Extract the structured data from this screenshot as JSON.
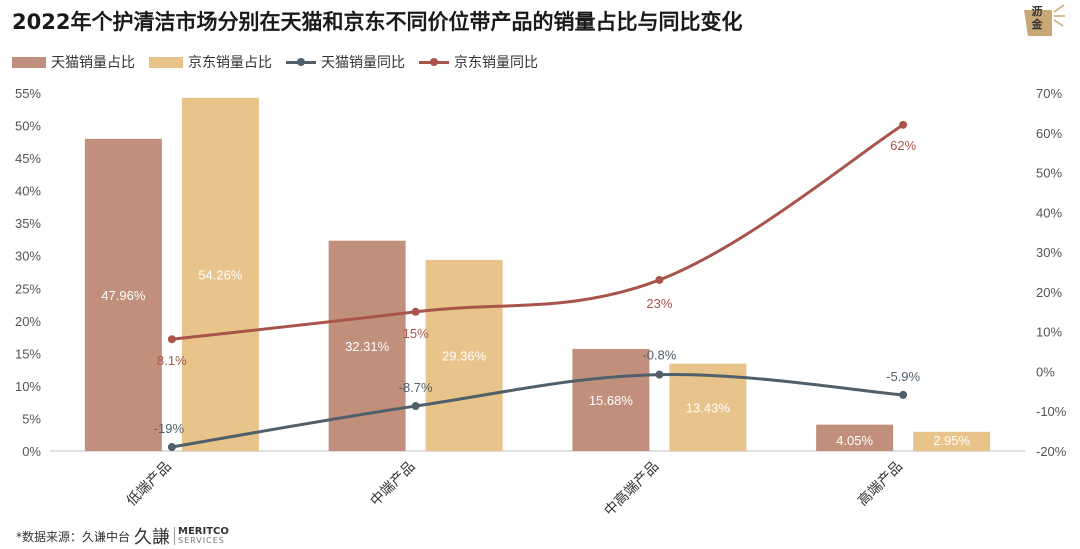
{
  "title": "2022年个护清洁市场分别在天猫和京东不同价位带产品的销量占比与同比变化",
  "logo": {
    "text": "沥金",
    "icon": "logo-star-icon"
  },
  "legend": [
    {
      "label": "天猫销量占比",
      "kind": "bar",
      "color": "#c0907c"
    },
    {
      "label": "京东销量占比",
      "kind": "bar",
      "color": "#e8c48a"
    },
    {
      "label": "天猫销量同比",
      "kind": "line",
      "color": "#4f5f6b"
    },
    {
      "label": "京东销量同比",
      "kind": "line",
      "color": "#a8544a"
    }
  ],
  "footer": {
    "source": "*数据来源：久谦中台",
    "brand_cn": "久謙",
    "brand_en": "MERITCO",
    "brand_en_sub": "SERVICES"
  },
  "chart_data": {
    "type": "bar",
    "categories": [
      "低端产品",
      "中端产品",
      "中高端产品",
      "高端产品"
    ],
    "series": [
      {
        "name": "天猫销量占比",
        "type": "bar",
        "axis": "left",
        "color": "#c0907c",
        "values": [
          47.96,
          32.31,
          15.68,
          4.05
        ],
        "labels": [
          "47.96%",
          "32.31%",
          "15.68%",
          "4.05%"
        ]
      },
      {
        "name": "京东销量占比",
        "type": "bar",
        "axis": "left",
        "color": "#e8c48a",
        "values": [
          54.26,
          29.36,
          13.43,
          2.95
        ],
        "labels": [
          "54.26%",
          "29.36%",
          "13.43%",
          "2.95%"
        ]
      },
      {
        "name": "天猫销量同比",
        "type": "line",
        "axis": "right",
        "color": "#4f5f6b",
        "values": [
          -19,
          -8.7,
          -0.8,
          -5.9
        ],
        "labels": [
          "-19%",
          "-8.7%",
          "-0.8%",
          "-5.9%"
        ]
      },
      {
        "name": "京东销量同比",
        "type": "line",
        "axis": "right",
        "color": "#a8544a",
        "values": [
          8.1,
          15,
          23,
          62
        ],
        "labels": [
          "8.1%",
          "15%",
          "23%",
          "62%"
        ]
      }
    ],
    "left_axis": {
      "ylim": [
        0,
        55
      ],
      "ticks": [
        "0%",
        "5%",
        "10%",
        "15%",
        "20%",
        "25%",
        "30%",
        "35%",
        "40%",
        "45%",
        "50%",
        "55%"
      ]
    },
    "right_axis": {
      "ylim": [
        -20,
        70
      ],
      "ticks": [
        "-20%",
        "-10%",
        "0%",
        "10%",
        "20%",
        "30%",
        "40%",
        "50%",
        "60%",
        "70%"
      ]
    },
    "grid": false,
    "legend_position": "top-left"
  }
}
